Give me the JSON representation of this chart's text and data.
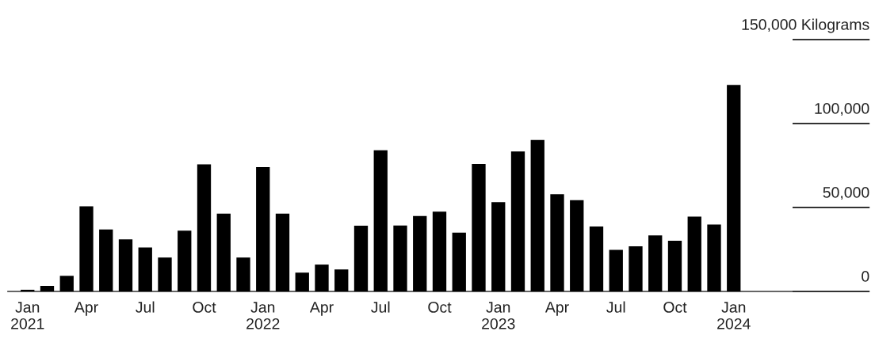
{
  "chart_data": {
    "type": "bar",
    "ylabel": null,
    "x": [
      "2021-01",
      "2021-02",
      "2021-03",
      "2021-04",
      "2021-05",
      "2021-06",
      "2021-07",
      "2021-08",
      "2021-09",
      "2021-10",
      "2021-11",
      "2021-12",
      "2022-01",
      "2022-02",
      "2022-03",
      "2022-04",
      "2022-05",
      "2022-06",
      "2022-07",
      "2022-08",
      "2022-09",
      "2022-10",
      "2022-11",
      "2022-12",
      "2023-01",
      "2023-02",
      "2023-03",
      "2023-04",
      "2023-05",
      "2023-06",
      "2023-07",
      "2023-08",
      "2023-09",
      "2023-10",
      "2023-11",
      "2023-12",
      "2024-01"
    ],
    "values": [
      1000,
      3300,
      9300,
      50700,
      36900,
      31000,
      26200,
      20200,
      36200,
      75700,
      46400,
      20200,
      74100,
      46400,
      11200,
      16000,
      13100,
      39100,
      84100,
      39300,
      44900,
      47500,
      35000,
      76000,
      53200,
      83400,
      90200,
      57900,
      54400,
      38700,
      24800,
      26900,
      33400,
      30200,
      44600,
      39900,
      123000
    ],
    "color": "#000000",
    "xlim": [
      "2020-12",
      "2024-04"
    ],
    "xticks": [
      {
        "value": "2021-01",
        "label": "Jan\n2021"
      },
      {
        "value": "2021-04",
        "label": "Apr"
      },
      {
        "value": "2021-07",
        "label": "Jul"
      },
      {
        "value": "2021-10",
        "label": "Oct"
      },
      {
        "value": "2022-01",
        "label": "Jan\n2022"
      },
      {
        "value": "2022-04",
        "label": "Apr"
      },
      {
        "value": "2022-07",
        "label": "Jul"
      },
      {
        "value": "2022-10",
        "label": "Oct"
      },
      {
        "value": "2023-01",
        "label": "Jan\n2023"
      },
      {
        "value": "2023-04",
        "label": "Apr"
      },
      {
        "value": "2023-07",
        "label": "Jul"
      },
      {
        "value": "2023-10",
        "label": "Oct"
      },
      {
        "value": "2024-01",
        "label": "Jan\n2024"
      }
    ],
    "ylim": [
      0,
      150000
    ],
    "yticks": [
      0,
      {
        "value": 50000,
        "label": "50,000"
      },
      {
        "value": 100000,
        "label": "100,000"
      },
      {
        "value": 150000,
        "label": "150,000 Kilograms"
      }
    ],
    "grid": false,
    "legend": false
  }
}
